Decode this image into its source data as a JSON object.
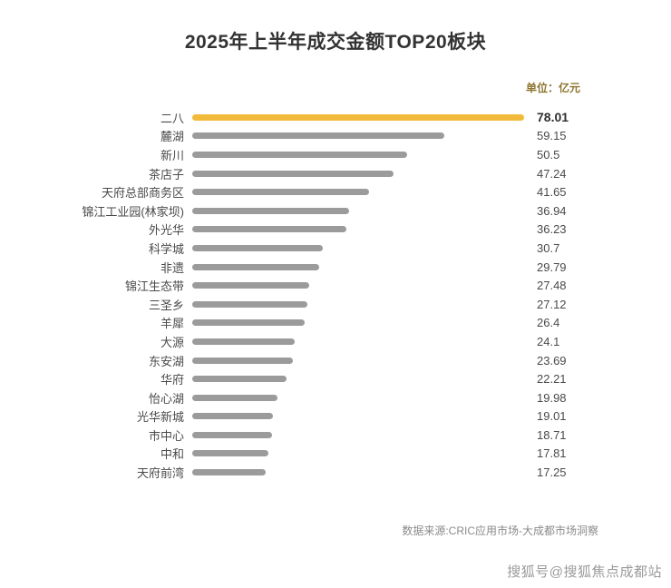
{
  "chart_data": {
    "type": "bar",
    "orientation": "horizontal",
    "title": "2025年上半年成交金额TOP20板块",
    "unit_label": "单位：亿元",
    "categories": [
      "二八",
      "麓湖",
      "新川",
      "茶店子",
      "天府总部商务区",
      "锦江工业园(林家坝)",
      "外光华",
      "科学城",
      "非遗",
      "锦江生态带",
      "三圣乡",
      "羊犀",
      "大源",
      "东安湖",
      "华府",
      "怡心湖",
      "光华新城",
      "市中心",
      "中和",
      "天府前湾"
    ],
    "values": [
      78.01,
      59.15,
      50.5,
      47.24,
      41.65,
      36.94,
      36.23,
      30.7,
      29.79,
      27.48,
      27.12,
      26.4,
      24.1,
      23.69,
      22.21,
      19.98,
      19.01,
      18.71,
      17.81,
      17.25
    ],
    "xlim": [
      0,
      78.01
    ],
    "highlight_index": 0,
    "highlight_color": "#f2ba3a",
    "bar_color": "#9b9b9b",
    "grid": false,
    "legend": "none"
  },
  "footer": {
    "source": "数据来源:CRIC应用市场-大成都市场洞察",
    "watermark": "搜狐号@搜狐焦点成都站"
  }
}
